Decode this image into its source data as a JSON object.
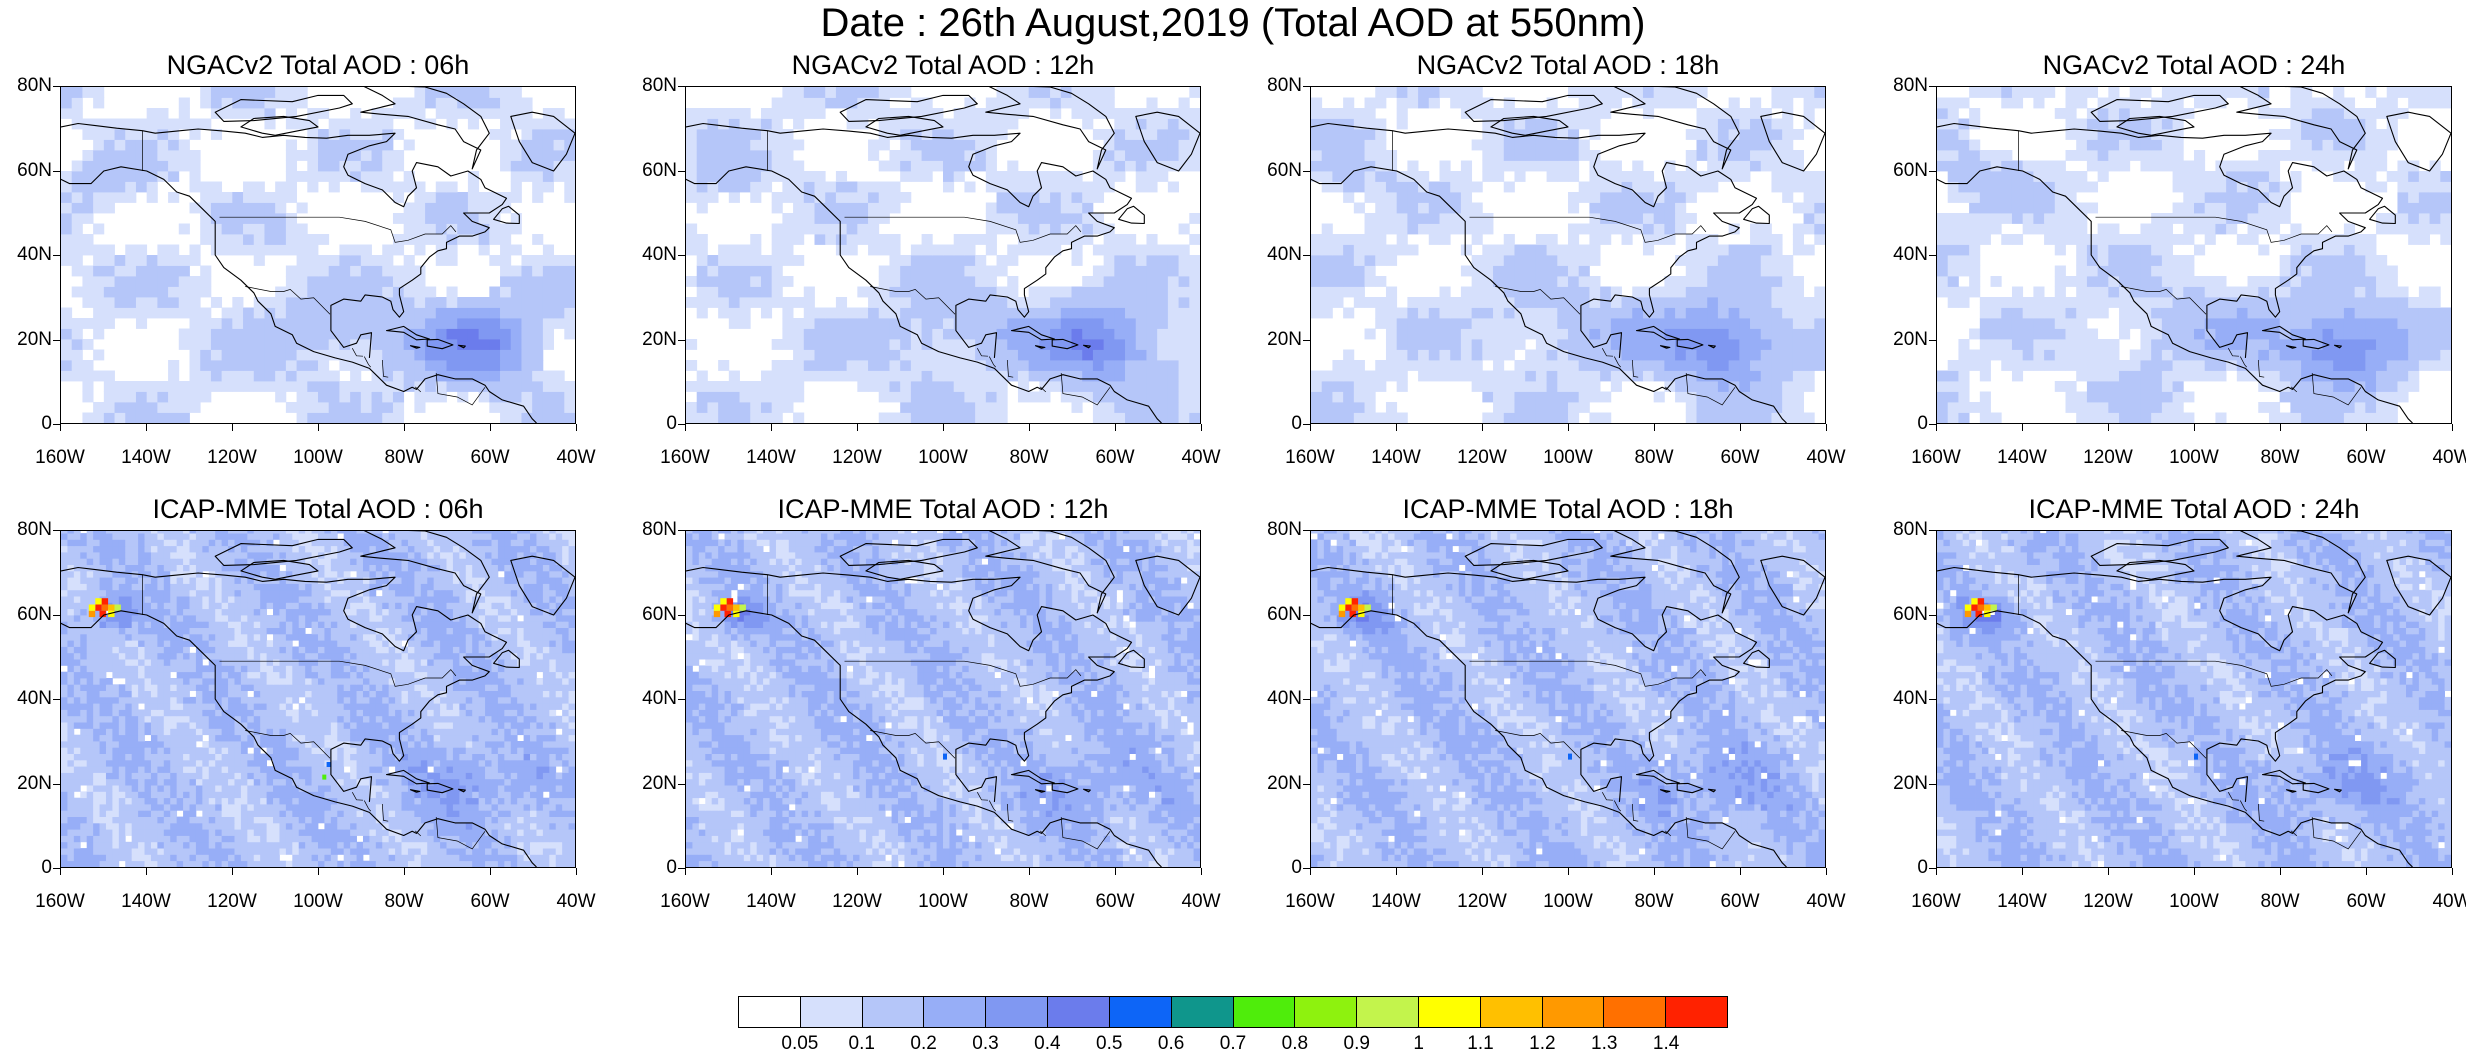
{
  "title": "Date : 26th August,2019 (Total AOD at 550nm)",
  "panels": [
    {
      "title": "NGACv2 Total AOD : 06h",
      "model": "NGACv2",
      "hour": "06h"
    },
    {
      "title": "NGACv2 Total AOD : 12h",
      "model": "NGACv2",
      "hour": "12h"
    },
    {
      "title": "NGACv2 Total AOD : 18h",
      "model": "NGACv2",
      "hour": "18h"
    },
    {
      "title": "NGACv2 Total AOD : 24h",
      "model": "NGACv2",
      "hour": "24h"
    },
    {
      "title": "ICAP-MME Total AOD : 06h",
      "model": "ICAP-MME",
      "hour": "06h"
    },
    {
      "title": "ICAP-MME Total AOD : 12h",
      "model": "ICAP-MME",
      "hour": "12h"
    },
    {
      "title": "ICAP-MME Total AOD : 18h",
      "model": "ICAP-MME",
      "hour": "18h"
    },
    {
      "title": "ICAP-MME Total AOD : 24h",
      "model": "ICAP-MME",
      "hour": "24h"
    }
  ],
  "axes": {
    "lat_ticks": [
      "80N",
      "60N",
      "40N",
      "20N",
      "0"
    ],
    "lon_ticks": [
      "160W",
      "140W",
      "120W",
      "100W",
      "80W",
      "60W",
      "40W"
    ],
    "lat_range": [
      0,
      80
    ],
    "lon_range": [
      -160,
      -40
    ]
  },
  "colorbar": {
    "labels": [
      "0.05",
      "0.1",
      "0.2",
      "0.3",
      "0.4",
      "0.5",
      "0.6",
      "0.7",
      "0.8",
      "0.9",
      "1",
      "1.1",
      "1.2",
      "1.3",
      "1.4"
    ],
    "colors": [
      "#ffffff",
      "#d6e0fc",
      "#b5c6f9",
      "#97aef7",
      "#8098f2",
      "#6b7cec",
      "#0d65f7",
      "#0f968c",
      "#4fed0b",
      "#8ef20e",
      "#c3f44c",
      "#ffff00",
      "#ffc000",
      "#ff9900",
      "#ff7000",
      "#ff2200"
    ]
  },
  "colors": {
    "ngac_background": "#ffffff",
    "icap_background": "#b5c6f9",
    "coastline": "#000000",
    "land_light": "#d6e0fc"
  }
}
